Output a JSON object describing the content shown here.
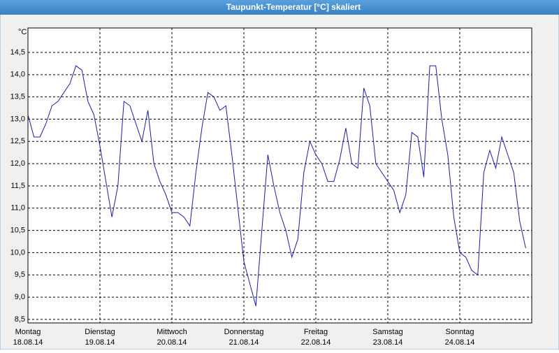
{
  "chart_data": {
    "type": "line",
    "title": "Taupunkt-Temperatur [°C] skaliert",
    "y_unit": "°C",
    "x": [
      0,
      2,
      4,
      6,
      8,
      10,
      12,
      14,
      16,
      18,
      20,
      22,
      24,
      26,
      28,
      30,
      32,
      34,
      36,
      38,
      40,
      42,
      44,
      46,
      48,
      50,
      52,
      54,
      56,
      58,
      60,
      62,
      64,
      66,
      68,
      70,
      72,
      74,
      76,
      78,
      80,
      82,
      84,
      86,
      88,
      90,
      92,
      94,
      96,
      98,
      100,
      102,
      104,
      106,
      108,
      110,
      112,
      114,
      116,
      118,
      120,
      122,
      124,
      126,
      128,
      130,
      132,
      134,
      136,
      138,
      140,
      142,
      144,
      146,
      148,
      150,
      152,
      154,
      156,
      158,
      160,
      162,
      164,
      166
    ],
    "series": [
      {
        "name": "Taupunkt",
        "color": "#1c1ca8",
        "values": [
          13.1,
          12.6,
          12.6,
          12.9,
          13.3,
          13.4,
          13.6,
          13.8,
          14.2,
          14.1,
          13.4,
          13.1,
          12.4,
          11.6,
          10.8,
          11.5,
          13.4,
          13.3,
          12.9,
          12.5,
          13.2,
          12.0,
          11.6,
          11.3,
          10.9,
          10.9,
          10.8,
          10.6,
          11.8,
          12.8,
          13.6,
          13.5,
          13.2,
          13.3,
          12.2,
          11.0,
          9.8,
          9.3,
          8.8,
          10.5,
          12.2,
          11.5,
          10.9,
          10.5,
          9.9,
          10.3,
          11.8,
          12.5,
          12.2,
          12.0,
          11.6,
          11.6,
          12.1,
          12.8,
          12.0,
          11.9,
          13.7,
          13.3,
          12.0,
          11.8,
          11.6,
          11.4,
          10.9,
          11.3,
          12.7,
          12.6,
          11.7,
          14.2,
          14.2,
          13.0,
          12.2,
          10.8,
          10.0,
          9.9,
          9.6,
          9.5,
          11.8,
          12.3,
          11.9,
          12.6,
          12.2,
          11.8,
          10.7,
          10.1
        ]
      }
    ],
    "xlim": [
      0,
      168
    ],
    "xticks": [
      {
        "value": 0,
        "label": "Montag"
      },
      {
        "value": 24,
        "label": "Dienstag"
      },
      {
        "value": 48,
        "label": "Mittwoch"
      },
      {
        "value": 72,
        "label": "Donnerstag"
      },
      {
        "value": 96,
        "label": "Freitag"
      },
      {
        "value": 120,
        "label": "Samstag"
      },
      {
        "value": 144,
        "label": "Sonntag"
      }
    ],
    "xtick_dates": [
      "18.08.14",
      "19.08.14",
      "20.08.14",
      "21.08.14",
      "22.08.14",
      "23.08.14",
      "24.08.14"
    ],
    "ylim": [
      8.42,
      15.05
    ],
    "yticks": [
      {
        "value": 8.5,
        "label": "8,5"
      },
      {
        "value": 9,
        "label": "9,0"
      },
      {
        "value": 9.5,
        "label": "9,5"
      },
      {
        "value": 10,
        "label": "10,0"
      },
      {
        "value": 10.5,
        "label": "10,5"
      },
      {
        "value": 11,
        "label": "11,0"
      },
      {
        "value": 11.5,
        "label": "11,5"
      },
      {
        "value": 12,
        "label": "12,0"
      },
      {
        "value": 12.5,
        "label": "12,5"
      },
      {
        "value": 13,
        "label": "13,0"
      },
      {
        "value": 13.5,
        "label": "13,5"
      },
      {
        "value": 14,
        "label": "14,0"
      },
      {
        "value": 14.5,
        "label": "14,5"
      }
    ],
    "grid": true
  }
}
